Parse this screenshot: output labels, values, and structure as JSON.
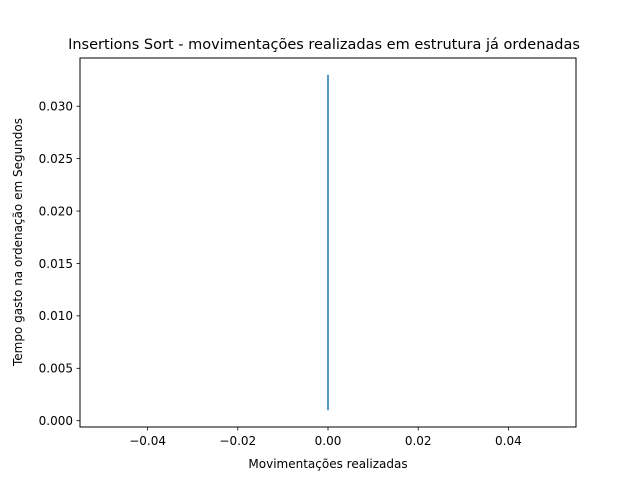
{
  "chart_data": {
    "type": "line",
    "title": "Insertions Sort - movimentações realizadas em estrutura já ordenadas",
    "xlabel": "Movimentações realizadas",
    "ylabel": "Tempo gasto na ordenação  em Segundos",
    "xlim": [
      -0.055,
      0.055
    ],
    "ylim": [
      -0.0006,
      0.0346
    ],
    "xticks": [
      -0.04,
      -0.02,
      0.0,
      0.02,
      0.04
    ],
    "xtick_labels": [
      "−0.04",
      "−0.02",
      "0.00",
      "0.02",
      "0.04"
    ],
    "yticks": [
      0.0,
      0.005,
      0.01,
      0.015,
      0.02,
      0.025,
      0.03
    ],
    "ytick_labels": [
      "0.000",
      "0.005",
      "0.010",
      "0.015",
      "0.020",
      "0.025",
      "0.030"
    ],
    "grid": false,
    "series": [
      {
        "color": "#1f77b4",
        "x": [
          0,
          0
        ],
        "y": [
          0.001,
          0.033
        ]
      }
    ]
  }
}
